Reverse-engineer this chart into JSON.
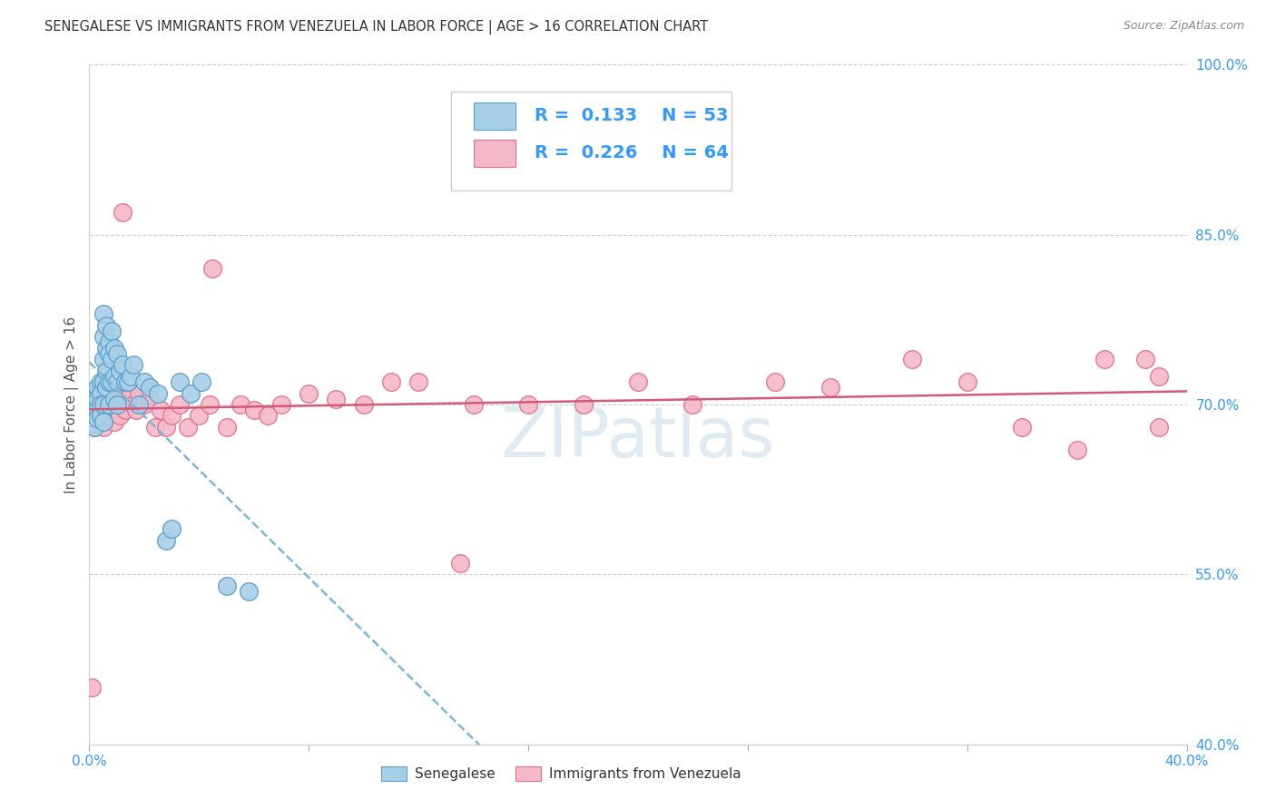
{
  "title": "SENEGALESE VS IMMIGRANTS FROM VENEZUELA IN LABOR FORCE | AGE > 16 CORRELATION CHART",
  "source": "Source: ZipAtlas.com",
  "ylabel": "In Labor Force | Age > 16",
  "x_min": 0.0,
  "x_max": 0.4,
  "y_min": 0.4,
  "y_max": 1.0,
  "x_ticks": [
    0.0,
    0.08,
    0.16,
    0.24,
    0.32,
    0.4
  ],
  "y_ticks": [
    0.4,
    0.55,
    0.7,
    0.85,
    1.0
  ],
  "y_tick_labels": [
    "40.0%",
    "55.0%",
    "70.0%",
    "85.0%",
    "100.0%"
  ],
  "senegalese_color": "#a8cfe8",
  "senegalese_edge_color": "#5b9ec9",
  "venezuela_color": "#f5b8c8",
  "venezuela_edge_color": "#e07090",
  "trendline_blue_color": "#7ab8d8",
  "trendline_pink_color": "#d45a7a",
  "R_senegalese": 0.133,
  "N_senegalese": 53,
  "R_venezuela": 0.226,
  "N_venezuela": 64,
  "legend_label_senegalese": "Senegalese",
  "legend_label_venezuela": "Immigrants from Venezuela",
  "watermark": "ZIPatlas",
  "background_color": "#ffffff",
  "grid_color": "#cccccc",
  "senegalese_x": [
    0.001,
    0.001,
    0.002,
    0.002,
    0.002,
    0.003,
    0.003,
    0.003,
    0.003,
    0.004,
    0.004,
    0.004,
    0.004,
    0.005,
    0.005,
    0.005,
    0.005,
    0.005,
    0.005,
    0.006,
    0.006,
    0.006,
    0.006,
    0.007,
    0.007,
    0.007,
    0.007,
    0.008,
    0.008,
    0.008,
    0.009,
    0.009,
    0.009,
    0.01,
    0.01,
    0.01,
    0.011,
    0.012,
    0.013,
    0.014,
    0.015,
    0.016,
    0.018,
    0.02,
    0.022,
    0.025,
    0.028,
    0.03,
    0.033,
    0.037,
    0.041,
    0.05,
    0.058
  ],
  "senegalese_y": [
    0.7,
    0.695,
    0.71,
    0.7,
    0.68,
    0.715,
    0.705,
    0.695,
    0.688,
    0.72,
    0.71,
    0.7,
    0.69,
    0.78,
    0.76,
    0.74,
    0.72,
    0.7,
    0.685,
    0.77,
    0.75,
    0.73,
    0.715,
    0.755,
    0.745,
    0.72,
    0.7,
    0.765,
    0.74,
    0.72,
    0.75,
    0.725,
    0.705,
    0.745,
    0.72,
    0.7,
    0.73,
    0.735,
    0.72,
    0.72,
    0.725,
    0.735,
    0.7,
    0.72,
    0.715,
    0.71,
    0.58,
    0.59,
    0.72,
    0.71,
    0.72,
    0.54,
    0.535
  ],
  "venezuela_x": [
    0.001,
    0.002,
    0.003,
    0.004,
    0.005,
    0.005,
    0.006,
    0.006,
    0.007,
    0.007,
    0.008,
    0.008,
    0.009,
    0.009,
    0.01,
    0.01,
    0.011,
    0.011,
    0.012,
    0.013,
    0.014,
    0.015,
    0.016,
    0.017,
    0.018,
    0.019,
    0.02,
    0.022,
    0.024,
    0.026,
    0.028,
    0.03,
    0.033,
    0.036,
    0.04,
    0.044,
    0.05,
    0.055,
    0.06,
    0.065,
    0.07,
    0.08,
    0.09,
    0.1,
    0.11,
    0.12,
    0.14,
    0.16,
    0.18,
    0.2,
    0.22,
    0.25,
    0.27,
    0.3,
    0.32,
    0.34,
    0.36,
    0.37,
    0.385,
    0.39,
    0.39,
    0.135,
    0.045,
    0.012
  ],
  "venezuela_y": [
    0.45,
    0.68,
    0.695,
    0.7,
    0.7,
    0.68,
    0.71,
    0.695,
    0.705,
    0.69,
    0.715,
    0.695,
    0.7,
    0.685,
    0.72,
    0.7,
    0.705,
    0.69,
    0.7,
    0.695,
    0.705,
    0.71,
    0.7,
    0.695,
    0.71,
    0.7,
    0.7,
    0.705,
    0.68,
    0.695,
    0.68,
    0.69,
    0.7,
    0.68,
    0.69,
    0.7,
    0.68,
    0.7,
    0.695,
    0.69,
    0.7,
    0.71,
    0.705,
    0.7,
    0.72,
    0.72,
    0.7,
    0.7,
    0.7,
    0.72,
    0.7,
    0.72,
    0.715,
    0.74,
    0.72,
    0.68,
    0.66,
    0.74,
    0.74,
    0.725,
    0.68,
    0.56,
    0.82,
    0.87
  ]
}
